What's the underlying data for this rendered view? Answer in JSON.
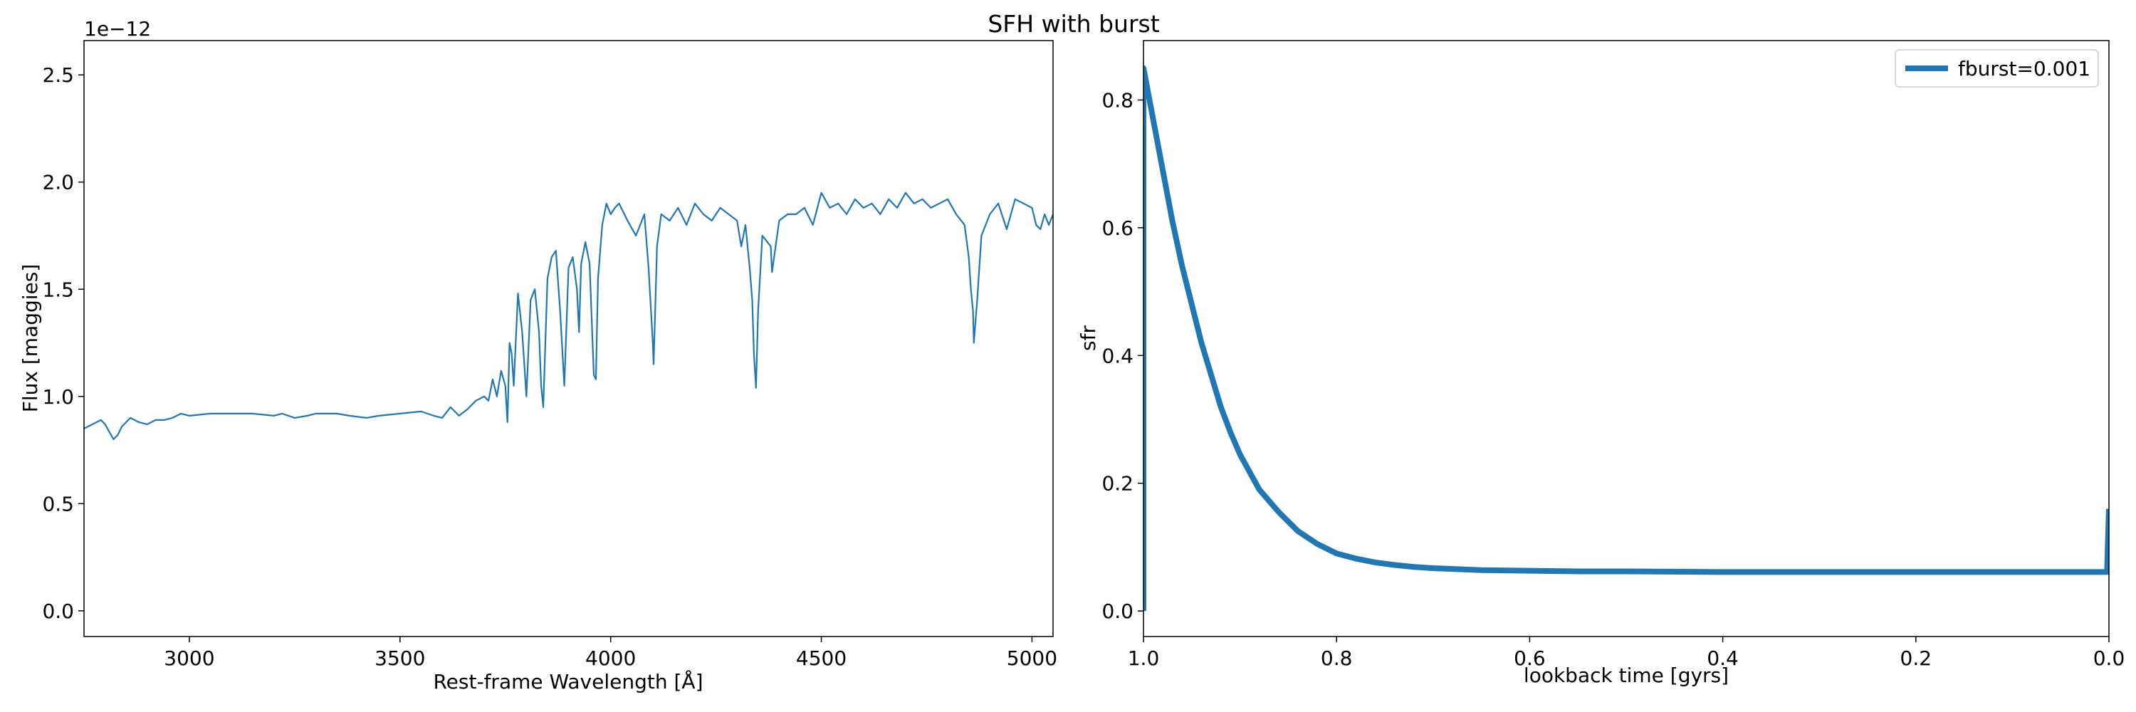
{
  "figure": {
    "suptitle": "SFH with burst",
    "line_color": "#1f77b4"
  },
  "chart_data": [
    {
      "type": "line",
      "xlabel": "Rest-frame Wavelength [Å]",
      "ylabel": "Flux [maggies]",
      "offset_text": "1e−12",
      "xlim": [
        2750,
        5050
      ],
      "ylim": [
        -0.12,
        2.66
      ],
      "xticks": [
        3000,
        3500,
        4000,
        4500,
        5000
      ],
      "xtick_labels": [
        "3000",
        "3500",
        "4000",
        "4500",
        "5000"
      ],
      "yticks": [
        0.0,
        0.5,
        1.0,
        1.5,
        2.0,
        2.5
      ],
      "ytick_labels": [
        "0.0",
        "0.5",
        "1.0",
        "1.5",
        "2.0",
        "2.5"
      ],
      "series": [
        {
          "x": [
            2750,
            2770,
            2790,
            2800,
            2820,
            2830,
            2840,
            2860,
            2880,
            2900,
            2920,
            2940,
            2960,
            2980,
            3000,
            3050,
            3100,
            3150,
            3200,
            3220,
            3250,
            3280,
            3300,
            3350,
            3380,
            3420,
            3450,
            3500,
            3550,
            3580,
            3600,
            3620,
            3640,
            3660,
            3680,
            3700,
            3710,
            3720,
            3730,
            3740,
            3750,
            3755,
            3760,
            3765,
            3770,
            3780,
            3790,
            3800,
            3810,
            3820,
            3830,
            3835,
            3840,
            3850,
            3860,
            3870,
            3880,
            3890,
            3900,
            3910,
            3920,
            3925,
            3930,
            3940,
            3950,
            3960,
            3965,
            3970,
            3980,
            3990,
            4000,
            4010,
            4020,
            4040,
            4060,
            4080,
            4090,
            4100,
            4102,
            4110,
            4120,
            4140,
            4160,
            4180,
            4200,
            4220,
            4240,
            4260,
            4280,
            4300,
            4310,
            4320,
            4330,
            4336,
            4340,
            4345,
            4350,
            4360,
            4380,
            4383,
            4400,
            4420,
            4440,
            4460,
            4480,
            4500,
            4520,
            4540,
            4560,
            4580,
            4600,
            4620,
            4640,
            4660,
            4680,
            4700,
            4720,
            4740,
            4760,
            4780,
            4800,
            4820,
            4840,
            4850,
            4855,
            4860,
            4862,
            4870,
            4880,
            4900,
            4920,
            4940,
            4960,
            4980,
            5000,
            5010,
            5020,
            5030,
            5040,
            5050
          ],
          "y": [
            0.85,
            0.87,
            0.89,
            0.87,
            0.8,
            0.82,
            0.86,
            0.9,
            0.88,
            0.87,
            0.89,
            0.89,
            0.9,
            0.92,
            0.91,
            0.92,
            0.92,
            0.92,
            0.91,
            0.92,
            0.9,
            0.91,
            0.92,
            0.92,
            0.91,
            0.9,
            0.91,
            0.92,
            0.93,
            0.91,
            0.9,
            0.95,
            0.91,
            0.94,
            0.98,
            1.0,
            0.98,
            1.08,
            1.0,
            1.12,
            1.05,
            0.88,
            1.25,
            1.2,
            1.05,
            1.48,
            1.3,
            1.0,
            1.45,
            1.5,
            1.3,
            1.05,
            0.95,
            1.55,
            1.65,
            1.68,
            1.4,
            1.05,
            1.6,
            1.65,
            1.5,
            1.3,
            1.62,
            1.72,
            1.62,
            1.1,
            1.08,
            1.55,
            1.8,
            1.9,
            1.85,
            1.88,
            1.9,
            1.82,
            1.75,
            1.85,
            1.6,
            1.25,
            1.15,
            1.7,
            1.85,
            1.82,
            1.88,
            1.8,
            1.9,
            1.85,
            1.82,
            1.88,
            1.85,
            1.82,
            1.7,
            1.8,
            1.6,
            1.45,
            1.2,
            1.04,
            1.4,
            1.75,
            1.7,
            1.58,
            1.82,
            1.85,
            1.85,
            1.88,
            1.8,
            1.95,
            1.88,
            1.9,
            1.85,
            1.92,
            1.88,
            1.9,
            1.85,
            1.92,
            1.88,
            1.95,
            1.9,
            1.92,
            1.88,
            1.9,
            1.92,
            1.85,
            1.8,
            1.65,
            1.5,
            1.4,
            1.25,
            1.45,
            1.75,
            1.85,
            1.9,
            1.78,
            1.92,
            1.9,
            1.88,
            1.8,
            1.78,
            1.85,
            1.8,
            1.85
          ]
        }
      ]
    },
    {
      "type": "line",
      "xlabel": "lookback time [gyrs]",
      "ylabel": "sfr",
      "xlim": [
        1.0,
        0.0
      ],
      "ylim": [
        -0.04,
        0.893
      ],
      "xticks": [
        1.0,
        0.8,
        0.6,
        0.4,
        0.2,
        0.0
      ],
      "xtick_labels": [
        "1.0",
        "0.8",
        "0.6",
        "0.4",
        "0.2",
        "0.0"
      ],
      "yticks": [
        0.0,
        0.2,
        0.4,
        0.6,
        0.8
      ],
      "ytick_labels": [
        "0.0",
        "0.2",
        "0.4",
        "0.6",
        "0.8"
      ],
      "legend": {
        "location": "upper right",
        "entries": [
          "fburst=0.001"
        ]
      },
      "series": [
        {
          "name": "fburst=0.001",
          "x": [
            1.0,
            1.0,
            0.99,
            0.98,
            0.97,
            0.96,
            0.95,
            0.94,
            0.93,
            0.92,
            0.91,
            0.9,
            0.88,
            0.86,
            0.84,
            0.82,
            0.8,
            0.78,
            0.76,
            0.74,
            0.72,
            0.7,
            0.65,
            0.6,
            0.55,
            0.5,
            0.4,
            0.3,
            0.2,
            0.1,
            0.05,
            0.01,
            0.002,
            0.0
          ],
          "y": [
            0.0,
            0.85,
            0.77,
            0.69,
            0.61,
            0.54,
            0.48,
            0.42,
            0.37,
            0.32,
            0.28,
            0.245,
            0.19,
            0.155,
            0.125,
            0.105,
            0.09,
            0.082,
            0.076,
            0.072,
            0.069,
            0.067,
            0.064,
            0.063,
            0.062,
            0.062,
            0.061,
            0.061,
            0.061,
            0.061,
            0.061,
            0.061,
            0.061,
            0.16
          ]
        }
      ]
    }
  ]
}
